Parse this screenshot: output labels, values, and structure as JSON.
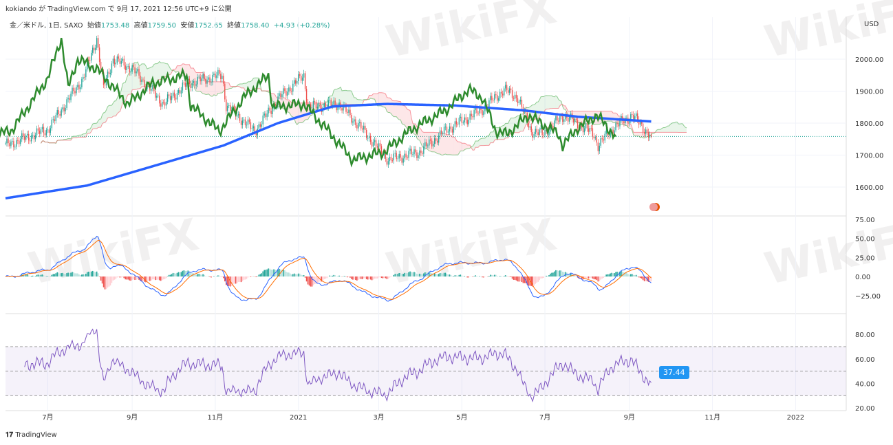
{
  "header": {
    "publisher": "kokiando が TradingView.com で 9月 17, 2021 12:56 UTC+9 に公開",
    "symbol": "金／米ドル, 1日, SAXO",
    "open_label": "始値",
    "open": "1753.48",
    "high_label": "高値",
    "high": "1759.50",
    "low_label": "安値",
    "low": "1752.65",
    "close_label": "終値",
    "close": "1758.40",
    "change": "+4.93 (+0.28%)"
  },
  "currency": "USD",
  "footer": "TradingView",
  "watermark": "WikiFX",
  "rsi_badge": "37.44",
  "chart_data": {
    "type": "line",
    "title": "金／米ドル, 1日, SAXO",
    "x_ticks": [
      "7月",
      "9月",
      "11月",
      "2021",
      "3月",
      "5月",
      "7月",
      "9月",
      "11月",
      "2022"
    ],
    "x_tick_days": [
      31,
      93,
      154,
      215,
      274,
      335,
      396,
      458,
      519,
      580
    ],
    "price_axis": {
      "ticks": [
        "1600.00",
        "1700.00",
        "1800.00",
        "1900.00",
        "2000.00"
      ],
      "ylim": [
        1545,
        2110
      ]
    },
    "macd_axis": {
      "ticks": [
        "75.00",
        "50.00",
        "25.00",
        "0.00",
        "−25.00"
      ],
      "ylim": [
        -40,
        80
      ]
    },
    "rsi_axis": {
      "ticks": [
        "80.00",
        "60.00",
        "40.00",
        "20.00"
      ],
      "ylim": [
        20,
        95
      ],
      "bands": [
        30,
        50,
        70
      ]
    },
    "close_keypoints": [
      [
        0,
        1730
      ],
      [
        31,
        1780
      ],
      [
        57,
        1940
      ],
      [
        67,
        2065
      ],
      [
        72,
        1910
      ],
      [
        79,
        2000
      ],
      [
        93,
        1970
      ],
      [
        116,
        1860
      ],
      [
        134,
        1925
      ],
      [
        159,
        1950
      ],
      [
        162,
        1855
      ],
      [
        183,
        1775
      ],
      [
        201,
        1880
      ],
      [
        219,
        1950
      ],
      [
        222,
        1850
      ],
      [
        245,
        1860
      ],
      [
        263,
        1775
      ],
      [
        281,
        1685
      ],
      [
        304,
        1710
      ],
      [
        324,
        1780
      ],
      [
        349,
        1840
      ],
      [
        366,
        1905
      ],
      [
        376,
        1880
      ],
      [
        386,
        1775
      ],
      [
        394,
        1765
      ],
      [
        410,
        1825
      ],
      [
        432,
        1765
      ],
      [
        435,
        1730
      ],
      [
        446,
        1785
      ],
      [
        460,
        1825
      ],
      [
        474,
        1758
      ]
    ],
    "sma200_keypoints": [
      [
        0,
        1565
      ],
      [
        60,
        1605
      ],
      [
        160,
        1730
      ],
      [
        200,
        1800
      ],
      [
        240,
        1852
      ],
      [
        280,
        1860
      ],
      [
        330,
        1855
      ],
      [
        380,
        1840
      ],
      [
        420,
        1820
      ],
      [
        474,
        1805
      ]
    ],
    "last_close": 1758.4,
    "colors": {
      "up": "#26a69a",
      "down": "#ef5350",
      "sma": "#2962ff",
      "lagging": "#2e8b2e",
      "macd": "#2962ff",
      "signal": "#ff6d00",
      "rsi": "#7e57c2"
    }
  }
}
